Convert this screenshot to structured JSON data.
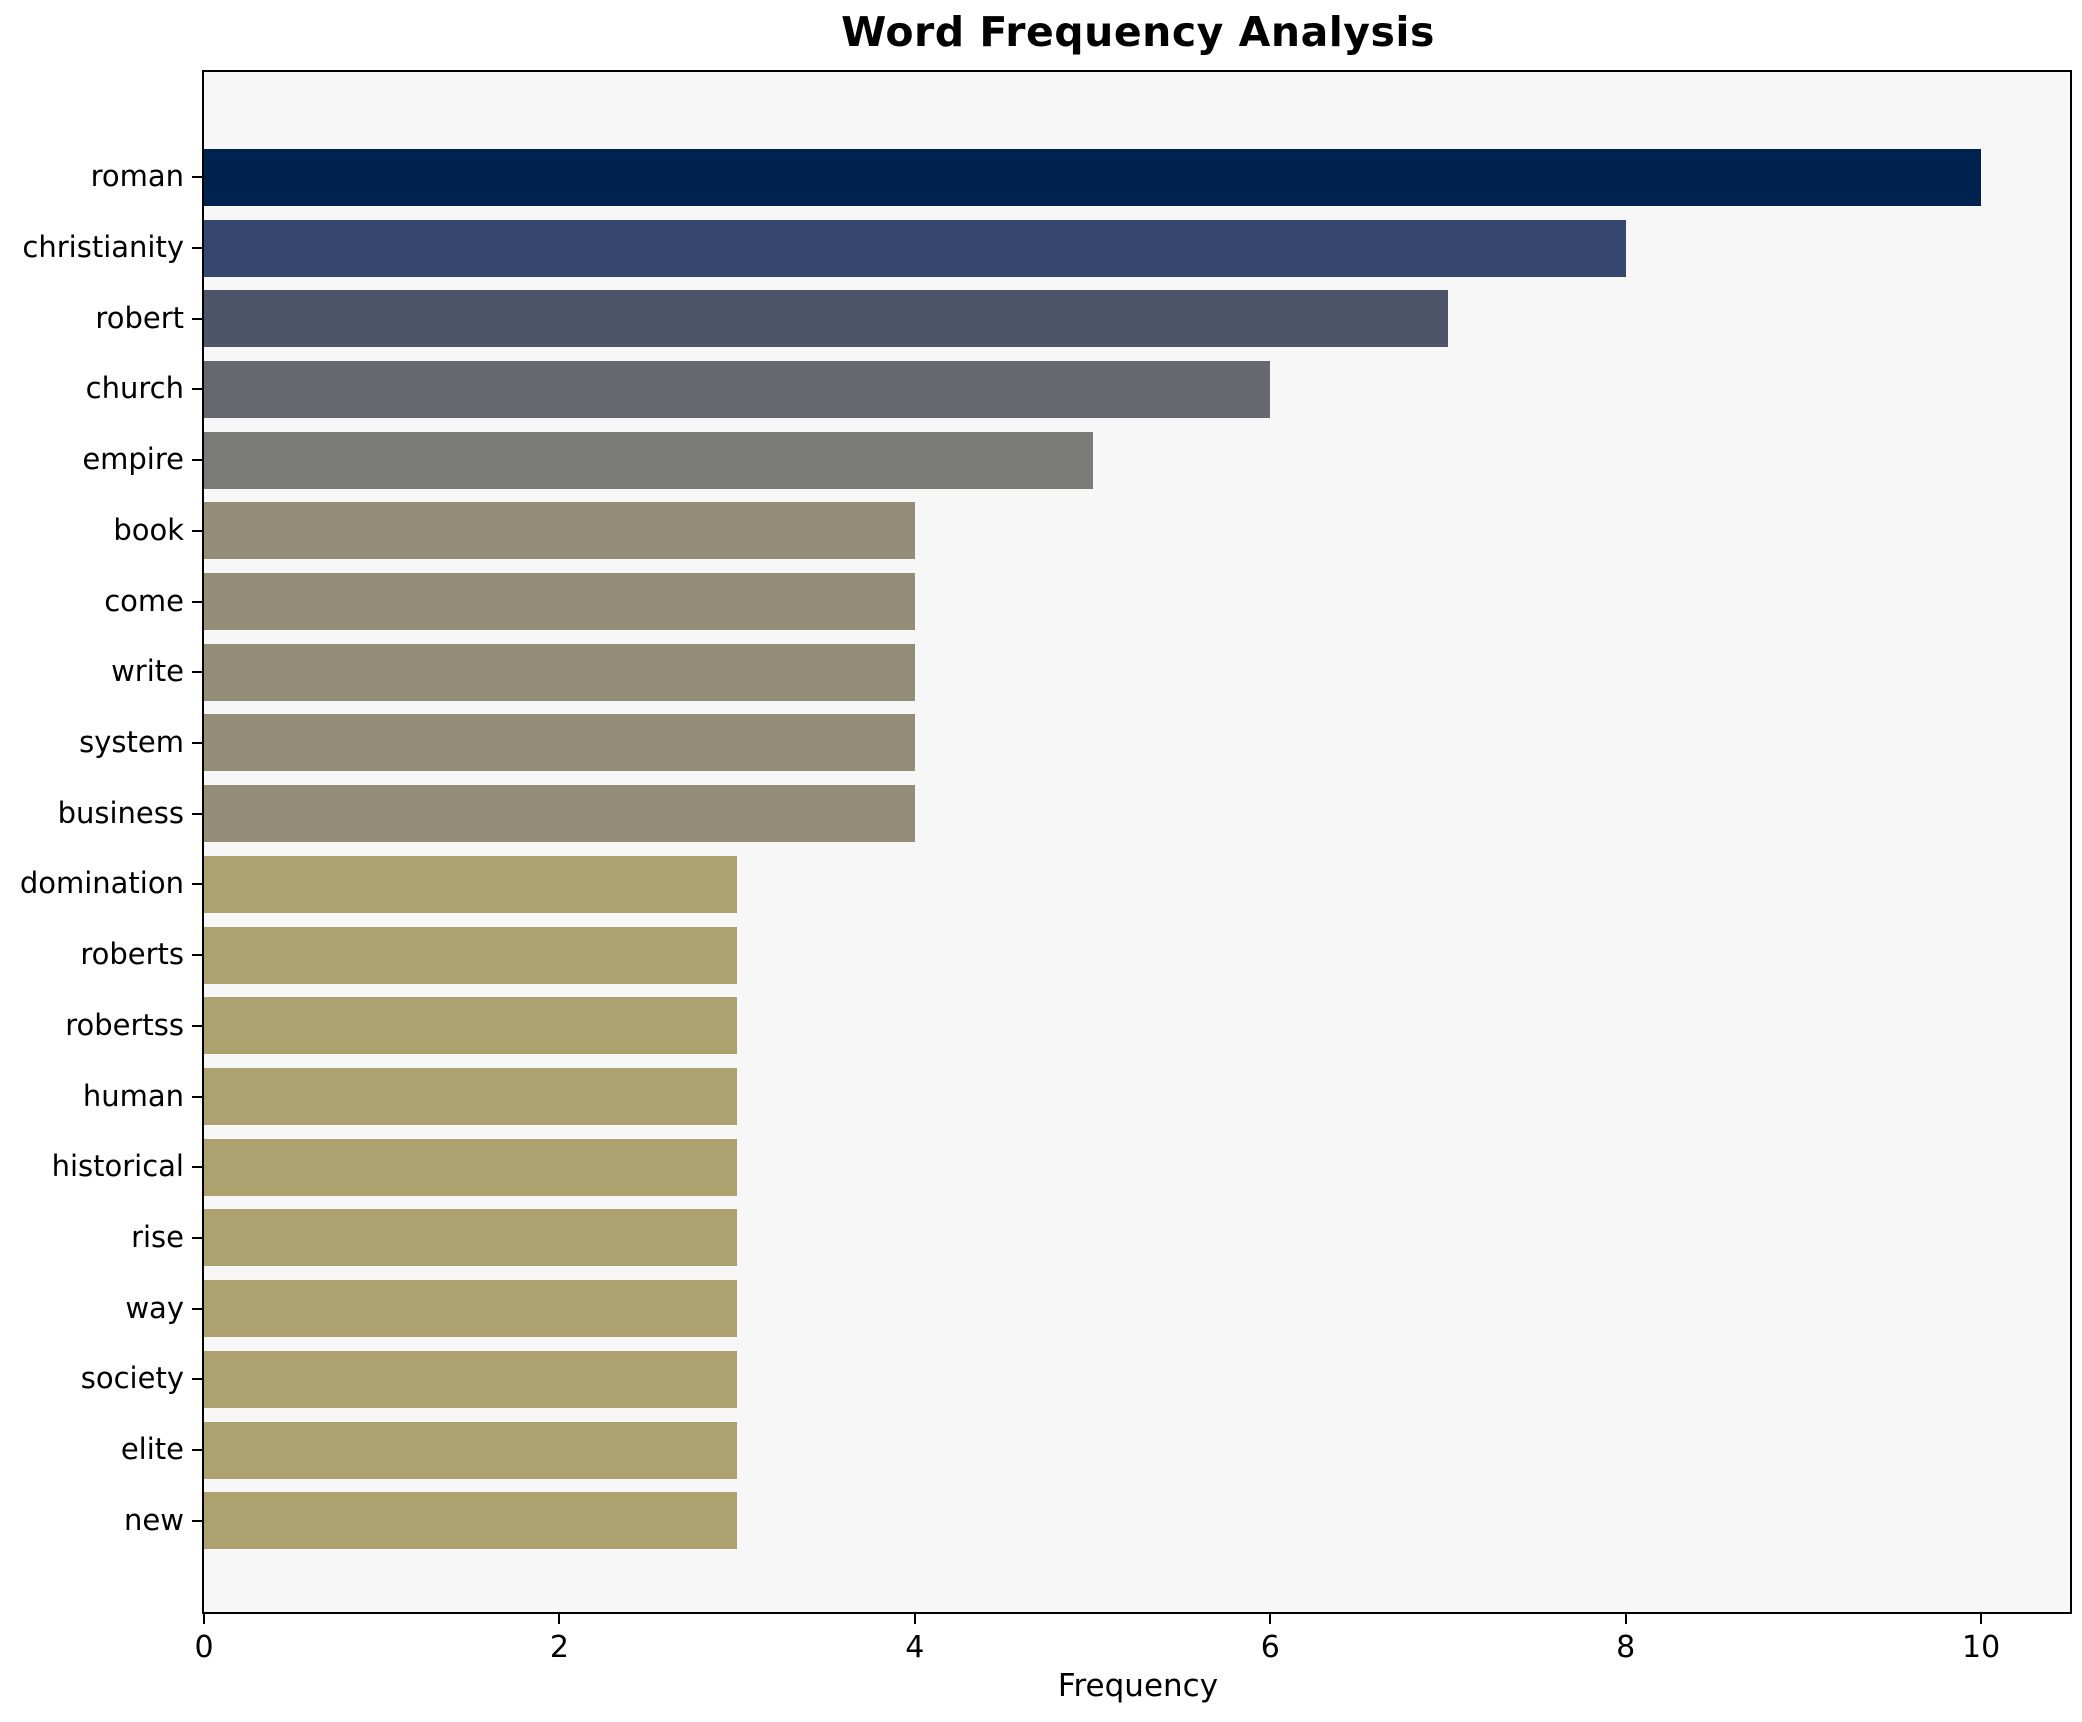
{
  "chart_data": {
    "type": "bar",
    "orientation": "horizontal",
    "title": "Word Frequency Analysis",
    "xlabel": "Frequency",
    "ylabel": "",
    "categories": [
      "roman",
      "christianity",
      "robert",
      "church",
      "empire",
      "book",
      "come",
      "write",
      "system",
      "business",
      "domination",
      "roberts",
      "robertss",
      "human",
      "historical",
      "rise",
      "way",
      "society",
      "elite",
      "new"
    ],
    "values": [
      10,
      8,
      7,
      6,
      5,
      4,
      4,
      4,
      4,
      4,
      3,
      3,
      3,
      3,
      3,
      3,
      3,
      3,
      3,
      3
    ],
    "bar_colors": [
      "#00224e",
      "#35466f",
      "#4e5569",
      "#65696f",
      "#7b7c77",
      "#948e78",
      "#948e78",
      "#948e78",
      "#948e78",
      "#948e78",
      "#ada26f",
      "#ada26f",
      "#ada26f",
      "#ada26f",
      "#ada26f",
      "#ada26f",
      "#ada26f",
      "#ada26f",
      "#ada26f",
      "#ada26f"
    ],
    "x_ticks": [
      "0",
      "2",
      "4",
      "6",
      "8",
      "10"
    ],
    "x_tick_values": [
      0,
      2,
      4,
      6,
      8,
      10
    ],
    "xlim": [
      0,
      10.5
    ],
    "grid": false,
    "legend_position": "none",
    "plot_background": "#f7f7f7",
    "figure_background": "#ffffff",
    "spine_color": "#000000",
    "text_color": "#000000"
  }
}
